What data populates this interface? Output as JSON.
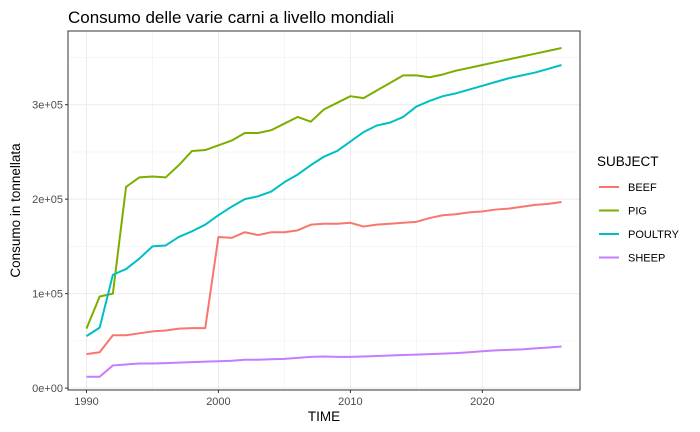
{
  "chart_data": {
    "type": "line",
    "title": "Consumo delle varie carni a livello mondiali",
    "xlabel": "TIME",
    "ylabel": "Consumo in tonnellata",
    "xlim": [
      1988.6,
      2027.4
    ],
    "ylim": [
      -2000,
      378000
    ],
    "x_ticks": [
      1990,
      2000,
      2010,
      2020
    ],
    "x_tick_labels": [
      "1990",
      "2000",
      "2010",
      "2020"
    ],
    "y_ticks": [
      0,
      100000,
      200000,
      300000
    ],
    "y_tick_labels": [
      "0e+00",
      "1e+05",
      "2e+05",
      "3e+05"
    ],
    "grid": true,
    "legend": {
      "title": "SUBJECT",
      "position": "right"
    },
    "x": [
      1990,
      1991,
      1992,
      1993,
      1994,
      1995,
      1996,
      1997,
      1998,
      1999,
      2000,
      2001,
      2002,
      2003,
      2004,
      2005,
      2006,
      2007,
      2008,
      2009,
      2010,
      2011,
      2012,
      2013,
      2014,
      2015,
      2016,
      2017,
      2018,
      2019,
      2020,
      2021,
      2022,
      2023,
      2024,
      2025,
      2026
    ],
    "series": [
      {
        "name": "BEEF",
        "color": "#F8766D",
        "values": [
          36000,
          38000,
          56000,
          56000,
          58000,
          60000,
          61000,
          63000,
          63500,
          63500,
          160000,
          159000,
          165000,
          162000,
          165000,
          165000,
          167000,
          173000,
          174000,
          174000,
          175000,
          171000,
          173000,
          174000,
          175000,
          176000,
          180000,
          183000,
          184000,
          186000,
          187000,
          189000,
          190000,
          192000,
          194000,
          195000,
          197000
        ]
      },
      {
        "name": "PIG",
        "color": "#7CAE00",
        "values": [
          63000,
          97000,
          100000,
          213000,
          223000,
          224000,
          223000,
          236000,
          251000,
          252000,
          257000,
          262000,
          270000,
          270000,
          273000,
          280000,
          287000,
          282000,
          295000,
          302000,
          309000,
          307000,
          315000,
          323000,
          331000,
          331000,
          329000,
          332000,
          336000,
          339000,
          342000,
          345000,
          348000,
          351000,
          354000,
          357000,
          360000
        ]
      },
      {
        "name": "POULTRY",
        "color": "#00BFC4",
        "values": [
          55000,
          64000,
          120000,
          126000,
          137000,
          150000,
          151000,
          160000,
          166000,
          173000,
          183000,
          192000,
          200000,
          203000,
          208000,
          218000,
          226000,
          236000,
          245000,
          251000,
          261000,
          271000,
          278000,
          281000,
          287000,
          298000,
          304000,
          309000,
          312000,
          316000,
          320000,
          324000,
          328000,
          331000,
          334000,
          338000,
          342000
        ]
      },
      {
        "name": "SHEEP",
        "color": "#C77CFF",
        "values": [
          12000,
          12000,
          24000,
          25000,
          26000,
          26000,
          26500,
          27000,
          27500,
          28000,
          28500,
          29000,
          30000,
          30000,
          30500,
          31000,
          32000,
          33000,
          33500,
          33000,
          33000,
          33500,
          34000,
          34500,
          35000,
          35500,
          36000,
          36500,
          37000,
          38000,
          39000,
          40000,
          40500,
          41000,
          42000,
          43000,
          44000
        ]
      }
    ]
  }
}
